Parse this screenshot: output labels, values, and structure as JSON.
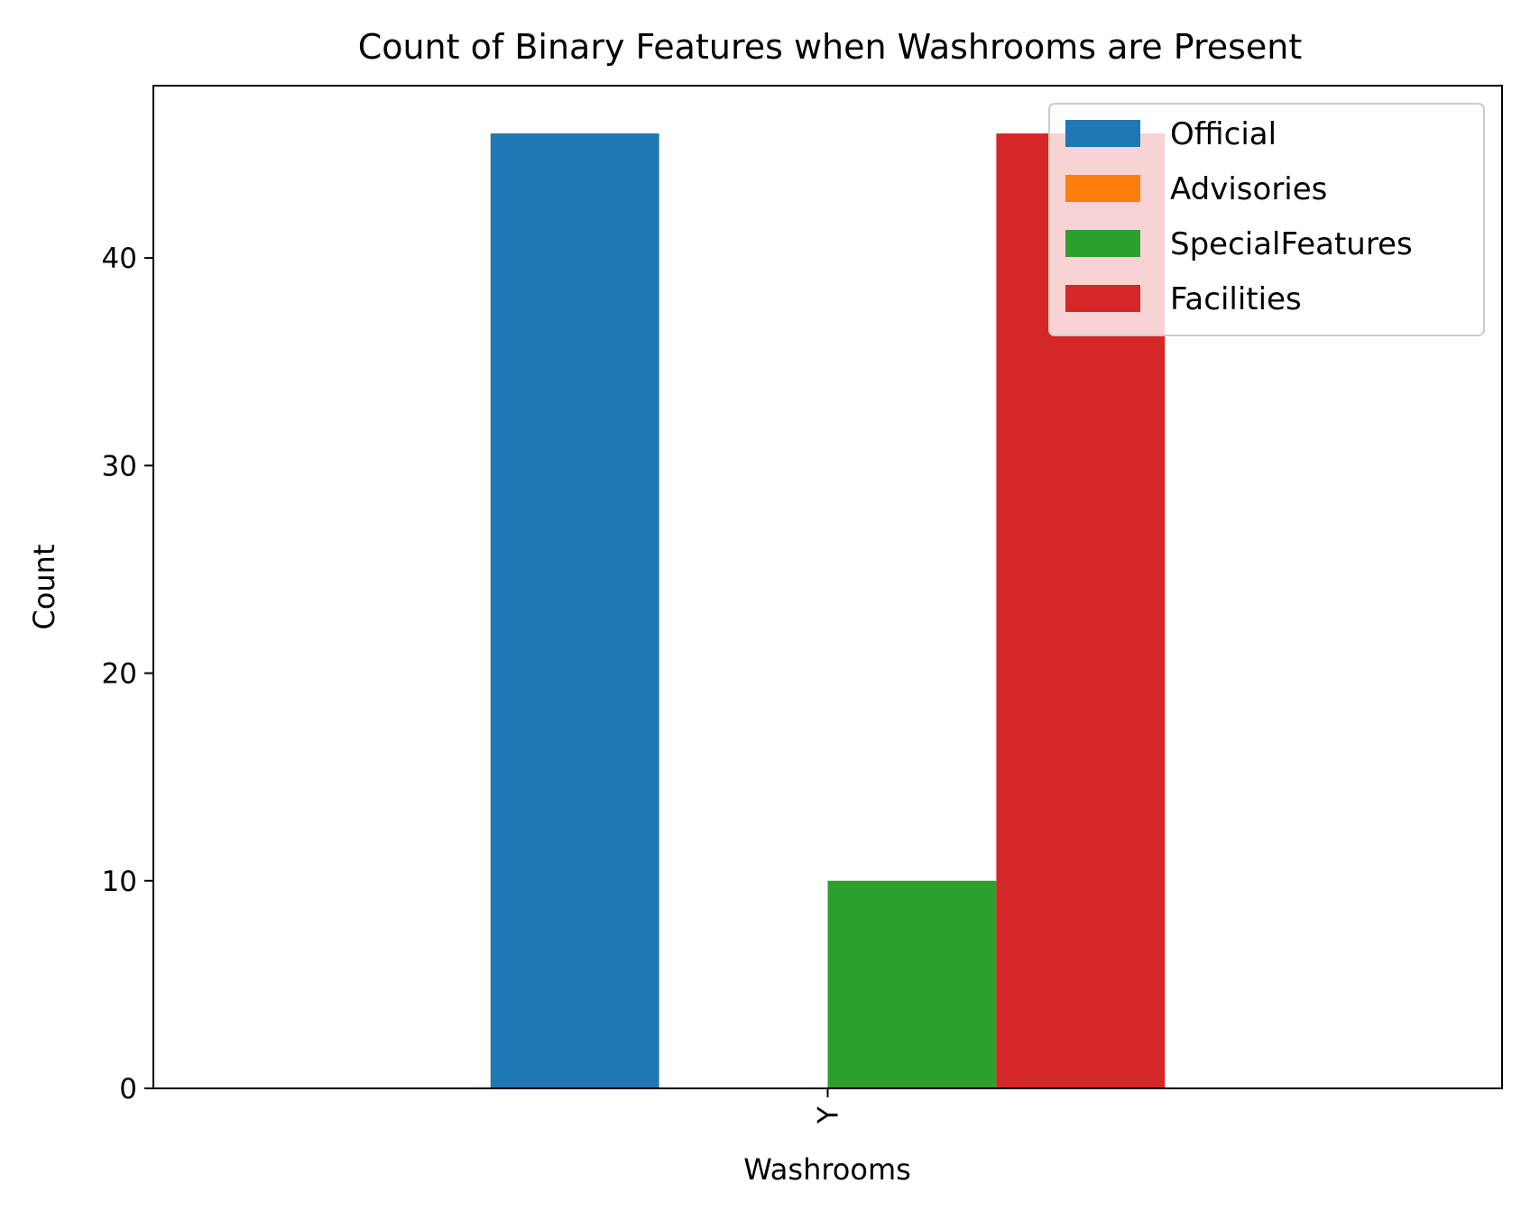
{
  "chart_data": {
    "type": "bar",
    "title": "Count of Binary Features when Washrooms are Present",
    "xlabel": "Washrooms",
    "ylabel": "Count",
    "categories": [
      "Y"
    ],
    "ylim": [
      0,
      48.3
    ],
    "yticks": [
      0,
      10,
      20,
      30,
      40
    ],
    "grid": false,
    "legend_position": "top-right",
    "series": [
      {
        "name": "Official",
        "color": "#1f77b4",
        "values": [
          46
        ]
      },
      {
        "name": "Advisories",
        "color": "#ff7f0e",
        "values": [
          0
        ]
      },
      {
        "name": "SpecialFeatures",
        "color": "#2ca02c",
        "values": [
          10
        ]
      },
      {
        "name": "Facilities",
        "color": "#d62728",
        "values": [
          46
        ]
      }
    ]
  }
}
